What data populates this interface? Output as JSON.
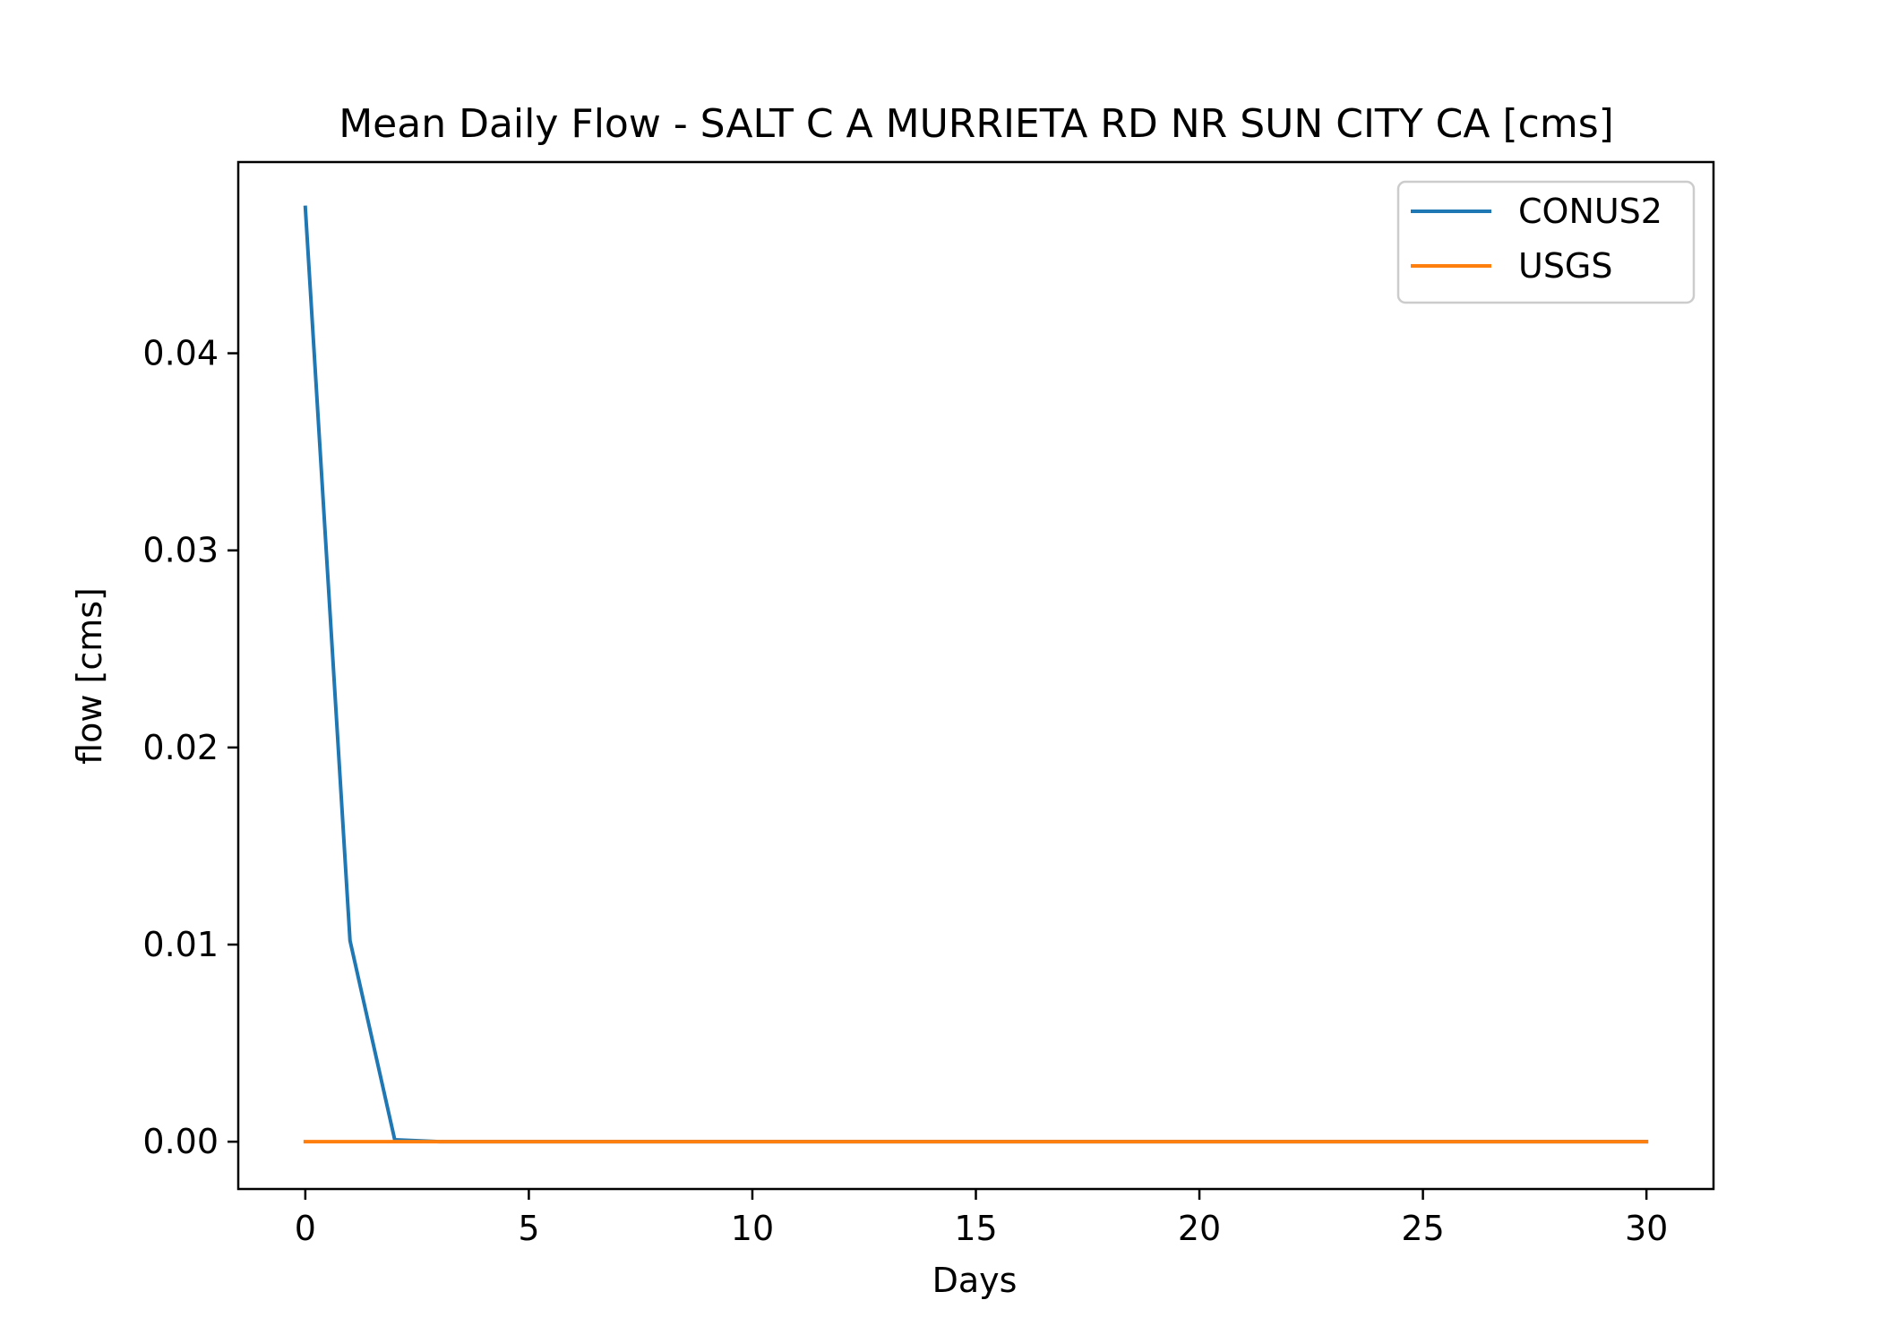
{
  "chart_data": {
    "type": "line",
    "title": "Mean Daily Flow - SALT C A MURRIETA RD NR SUN CITY CA [cms]",
    "xlabel": "Days",
    "ylabel": "flow [cms]",
    "xlim": [
      -1.5,
      31.5
    ],
    "ylim": [
      -0.0024,
      0.0497
    ],
    "xticks": [
      0,
      5,
      10,
      15,
      20,
      25,
      30
    ],
    "xtick_labels": [
      "0",
      "5",
      "10",
      "15",
      "20",
      "25",
      "30"
    ],
    "yticks": [
      0.0,
      0.01,
      0.02,
      0.03,
      0.04
    ],
    "ytick_labels": [
      "0.00",
      "0.01",
      "0.02",
      "0.03",
      "0.04"
    ],
    "grid": false,
    "legend_position": "top-right",
    "x": [
      0,
      1,
      2,
      3,
      4,
      5,
      6,
      7,
      8,
      9,
      10,
      11,
      12,
      13,
      14,
      15,
      16,
      17,
      18,
      19,
      20,
      21,
      22,
      23,
      24,
      25,
      26,
      27,
      28,
      29,
      30
    ],
    "series": [
      {
        "name": "CONUS2",
        "color": "#1f77b4",
        "values": [
          0.0474,
          0.0102,
          0.0001,
          0.0,
          0.0,
          0.0,
          0.0,
          0.0,
          0.0,
          0.0,
          0.0,
          0.0,
          0.0,
          0.0,
          0.0,
          0.0,
          0.0,
          0.0,
          0.0,
          0.0,
          0.0,
          0.0,
          0.0,
          0.0,
          0.0,
          0.0,
          0.0,
          0.0,
          0.0,
          0.0,
          0.0
        ]
      },
      {
        "name": "USGS",
        "color": "#ff7f0e",
        "values": [
          0.0,
          0.0,
          0.0,
          0.0,
          0.0,
          0.0,
          0.0,
          0.0,
          0.0,
          0.0,
          0.0,
          0.0,
          0.0,
          0.0,
          0.0,
          0.0,
          0.0,
          0.0,
          0.0,
          0.0,
          0.0,
          0.0,
          0.0,
          0.0,
          0.0,
          0.0,
          0.0,
          0.0,
          0.0,
          0.0,
          0.0
        ]
      }
    ]
  }
}
